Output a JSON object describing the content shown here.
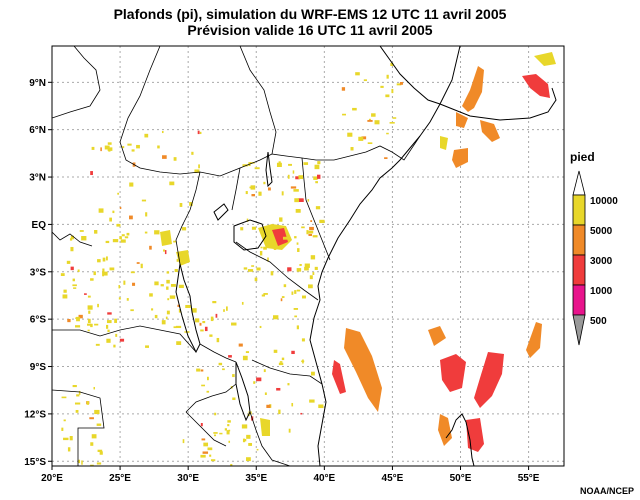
{
  "title_line1": "Plafonds (pi), simulation du WRF-EMS 12 UTC 11 avril 2005",
  "title_line2": "Prévision valide 16 UTC 11 avril 2005",
  "credit": "NOAA/NCEP",
  "axes": {
    "x_ticks": [
      {
        "value": 20,
        "label": "20°E"
      },
      {
        "value": 25,
        "label": "25°E"
      },
      {
        "value": 30,
        "label": "30°E"
      },
      {
        "value": 35,
        "label": "35°E"
      },
      {
        "value": 40,
        "label": "40°E"
      },
      {
        "value": 45,
        "label": "45°E"
      },
      {
        "value": 50,
        "label": "50°E"
      },
      {
        "value": 55,
        "label": "55°E"
      }
    ],
    "y_ticks": [
      {
        "value": 9,
        "label": "9°N"
      },
      {
        "value": 6,
        "label": "6°N"
      },
      {
        "value": 3,
        "label": "3°N"
      },
      {
        "value": 0,
        "label": "EQ"
      },
      {
        "value": -3,
        "label": "3°S"
      },
      {
        "value": -6,
        "label": "6°S"
      },
      {
        "value": -9,
        "label": "9°S"
      },
      {
        "value": -12,
        "label": "12°S"
      },
      {
        "value": -15,
        "label": "15°S"
      }
    ],
    "lon_range": [
      20,
      57.6
    ],
    "lat_range": [
      -15.3,
      11.3
    ]
  },
  "legend": {
    "title": "pied",
    "entries": [
      {
        "label": "10000",
        "color": "#e8d72a"
      },
      {
        "label": "5000",
        "color": "#f08a28"
      },
      {
        "label": "3000",
        "color": "#f03c3c"
      },
      {
        "label": "1000",
        "color": "#e8148c"
      },
      {
        "label": "500",
        "color": "#999999"
      }
    ]
  },
  "colors": {
    "high": "#e8d72a",
    "mid": "#f08a28",
    "low": "#f03c3c",
    "very_low": "#e8148c",
    "lowest": "#999999",
    "coast": "#000000",
    "grid": "#aaaaaa"
  }
}
